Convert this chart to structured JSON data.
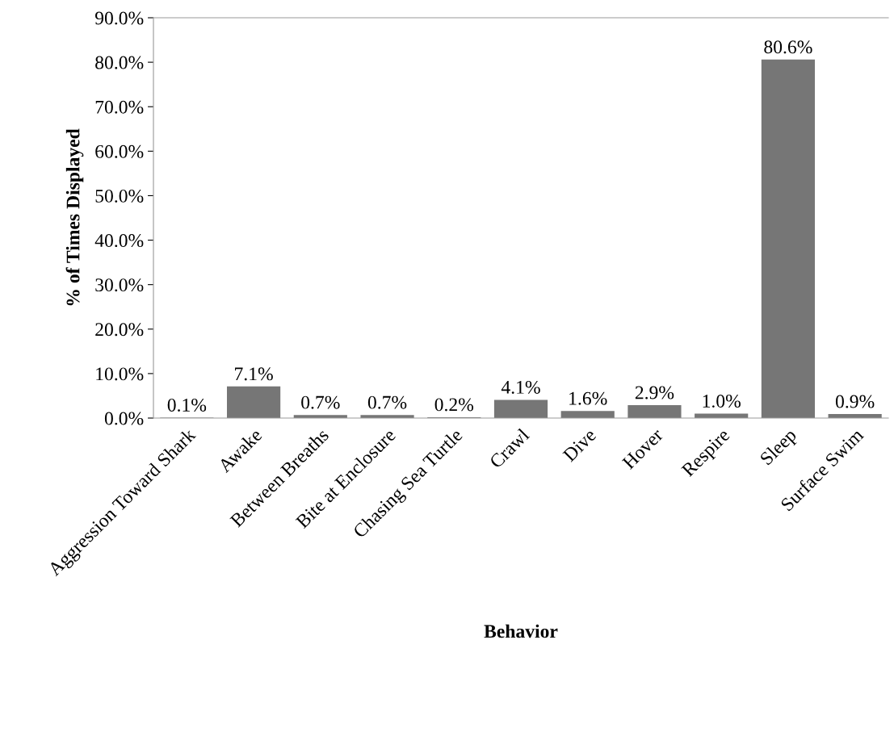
{
  "chart_data": {
    "type": "bar",
    "xlabel": "Behavior",
    "ylabel": "% of Times Displayed",
    "categories": [
      "Aggression Toward Shark",
      "Awake",
      "Between Breaths",
      "Bite at Enclosure",
      "Chasing Sea Turtle",
      "Crawl",
      "Dive",
      "Hover",
      "Respire",
      "Sleep",
      "Surface Swim"
    ],
    "values": [
      0.1,
      7.1,
      0.7,
      0.7,
      0.2,
      4.1,
      1.6,
      2.9,
      1.0,
      80.6,
      0.9
    ],
    "value_labels": [
      "0.1%",
      "7.1%",
      "0.7%",
      "0.7%",
      "0.2%",
      "4.1%",
      "1.6%",
      "2.9%",
      "1.0%",
      "80.6%",
      "0.9%"
    ],
    "color": "#767676",
    "ylim": [
      0,
      90
    ],
    "yticks": [
      {
        "value": 0,
        "label": "0.0%"
      },
      {
        "value": 10,
        "label": "10.0%"
      },
      {
        "value": 20,
        "label": "20.0%"
      },
      {
        "value": 30,
        "label": "30.0%"
      },
      {
        "value": 40,
        "label": "40.0%"
      },
      {
        "value": 50,
        "label": "50.0%"
      },
      {
        "value": 60,
        "label": "60.0%"
      },
      {
        "value": 70,
        "label": "70.0%"
      },
      {
        "value": 80,
        "label": "80.0%"
      },
      {
        "value": 90,
        "label": "90.0%"
      }
    ],
    "grid": false,
    "legend": false
  }
}
